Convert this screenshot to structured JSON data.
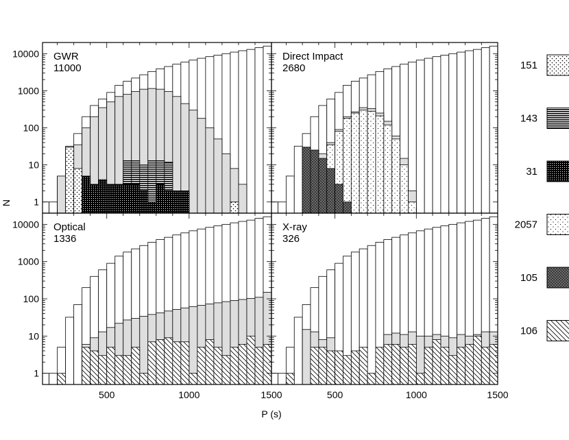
{
  "figure": {
    "xlabel": "P (s)",
    "ylabel": "N"
  },
  "chart_data": {
    "type": "bar",
    "note_scale": "log-y histogram; x is orbital period P in seconds",
    "bin_centers": [
      75,
      125,
      175,
      225,
      275,
      325,
      375,
      425,
      475,
      525,
      575,
      625,
      675,
      725,
      775,
      825,
      875,
      925,
      975,
      1025,
      1075,
      1125,
      1175,
      1225,
      1275,
      1325,
      1375,
      1425,
      1475
    ],
    "xlim": [
      110,
      1500
    ],
    "ylim": [
      0.5,
      20000
    ],
    "xticks": [
      500,
      1000,
      1500
    ],
    "ytick_labels": [
      "1",
      "10",
      "100",
      "1000",
      "10000"
    ],
    "yticks": [
      1,
      10,
      100,
      1000,
      10000
    ],
    "total": [
      1,
      1,
      1,
      5,
      32,
      70,
      200,
      400,
      600,
      900,
      1400,
      1800,
      2200,
      2700,
      3300,
      3900,
      4500,
      5200,
      5900,
      6700,
      7500,
      8300,
      9100,
      10000,
      11000,
      12000,
      13000,
      14500,
      16000
    ],
    "panels": [
      {
        "label": "GWR",
        "count": "11000",
        "detected": [
          null,
          null,
          null,
          5,
          30,
          35,
          100,
          200,
          350,
          500,
          700,
          800,
          950,
          1100,
          1150,
          1100,
          950,
          700,
          450,
          300,
          180,
          100,
          50,
          20,
          8,
          3,
          null,
          null,
          null
        ],
        "subsets": [
          {
            "pattern": "dots-sparse",
            "values": [
              null,
              null,
              null,
              null,
              30,
              8,
              2,
              null,
              null,
              null,
              null,
              null,
              null,
              null,
              null,
              null,
              null,
              null,
              null,
              null,
              null,
              null,
              null,
              null,
              1,
              null,
              null,
              null,
              null
            ]
          },
          {
            "pattern": "hlines",
            "values": [
              null,
              null,
              null,
              null,
              null,
              null,
              null,
              null,
              null,
              null,
              3,
              13,
              13,
              10,
              13,
              13,
              12,
              null,
              null,
              null,
              null,
              null,
              null,
              null,
              null,
              null,
              null,
              null,
              null
            ]
          },
          {
            "pattern": "dense-dots",
            "values": [
              null,
              null,
              null,
              null,
              null,
              null,
              5,
              3,
              4,
              3,
              3,
              3,
              3,
              2,
              1,
              3,
              2,
              2,
              2,
              null,
              null,
              null,
              null,
              null,
              null,
              null,
              null,
              null,
              null
            ]
          },
          {
            "pattern": "stipple",
            "values": [
              null,
              null,
              null,
              null,
              null,
              null,
              null,
              null,
              null,
              null,
              null,
              null,
              null,
              null,
              null,
              null,
              null,
              null,
              null,
              null,
              null,
              null,
              null,
              null,
              null,
              null,
              null,
              null,
              null
            ]
          }
        ]
      },
      {
        "label": "Direct Impact",
        "count": "2680",
        "detected": [
          null,
          null,
          null,
          null,
          null,
          30,
          25,
          20,
          40,
          90,
          200,
          270,
          350,
          330,
          250,
          150,
          60,
          15,
          2,
          null,
          null,
          null,
          null,
          null,
          null,
          null,
          null,
          null,
          null
        ],
        "subsets": [
          {
            "pattern": "stipple",
            "values": [
              null,
              null,
              null,
              null,
              null,
              null,
              8,
              14,
              35,
              80,
              180,
              250,
              300,
              280,
              210,
              120,
              50,
              10,
              1,
              null,
              null,
              null,
              null,
              null,
              null,
              null,
              null,
              null,
              null
            ]
          },
          {
            "pattern": "crosshatch",
            "values": [
              null,
              null,
              null,
              null,
              null,
              30,
              25,
              15,
              8,
              3,
              1,
              null,
              null,
              null,
              null,
              null,
              null,
              null,
              null,
              null,
              null,
              null,
              null,
              null,
              null,
              null,
              null,
              null,
              null
            ]
          }
        ]
      },
      {
        "label": "Optical",
        "count": "1336",
        "detected": [
          null,
          null,
          null,
          null,
          null,
          null,
          6,
          9,
          13,
          17,
          22,
          27,
          30,
          34,
          38,
          42,
          47,
          52,
          57,
          62,
          67,
          73,
          78,
          84,
          90,
          96,
          102,
          110,
          150
        ],
        "subsets": [
          {
            "pattern": "diagonal",
            "values": [
              null,
              null,
              null,
              1,
              null,
              null,
              5,
              4,
              3,
              5,
              3,
              3,
              5,
              1,
              7,
              8,
              9,
              7,
              7,
              1,
              5,
              8,
              5,
              3,
              5,
              6,
              10,
              5,
              6
            ]
          }
        ]
      },
      {
        "label": "X-ray",
        "count": "326",
        "detected": [
          null,
          null,
          null,
          null,
          null,
          15,
          13,
          8,
          9,
          null,
          null,
          null,
          null,
          null,
          null,
          11,
          12,
          11,
          13,
          10,
          10,
          11,
          10,
          9,
          11,
          10,
          11,
          13,
          13
        ],
        "subsets": [
          {
            "pattern": "diagonal",
            "values": [
              null,
              null,
              null,
              1,
              null,
              null,
              5,
              5,
              4,
              4,
              3,
              4,
              5,
              1,
              5,
              6,
              6,
              5,
              6,
              1,
              5,
              8,
              5,
              3,
              5,
              6,
              10,
              5,
              6
            ]
          }
        ]
      }
    ],
    "legend": [
      {
        "pattern": "dots-sparse",
        "label": "151"
      },
      {
        "pattern": "hlines",
        "label": "143"
      },
      {
        "pattern": "dense-dots",
        "label": "31"
      },
      {
        "pattern": "stipple",
        "label": "2057"
      },
      {
        "pattern": "crosshatch",
        "label": "105"
      },
      {
        "pattern": "diagonal",
        "label": "106"
      }
    ]
  }
}
